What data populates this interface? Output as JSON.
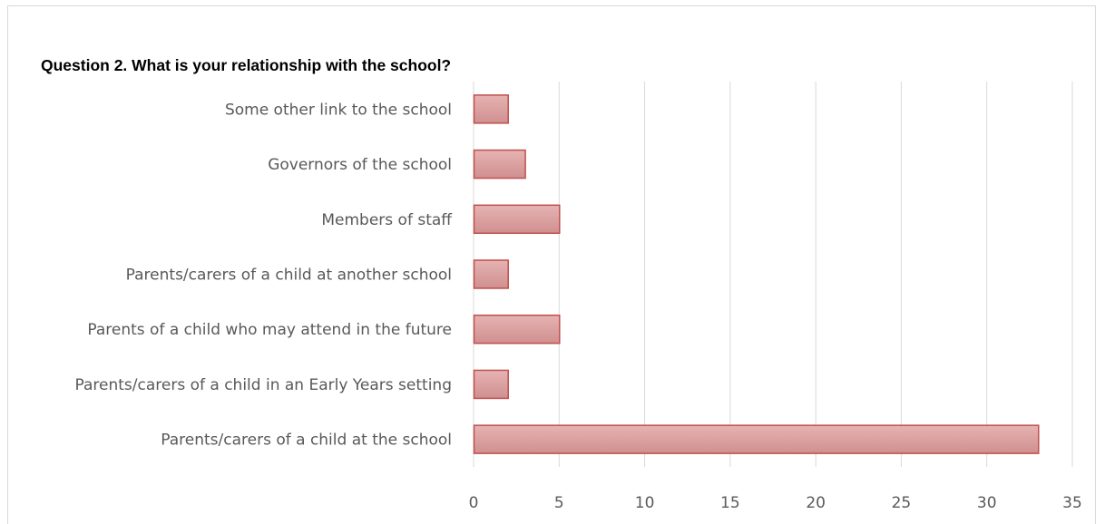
{
  "chart_data": {
    "type": "bar",
    "orientation": "horizontal",
    "title": "Question 2. What is your relationship with the school?",
    "categories": [
      "Some other link to the school",
      "Governors of the school",
      "Members of staff",
      "Parents/carers of a child at another school",
      "Parents of a child who may attend in the future",
      "Parents/carers of a child in an Early Years setting",
      "Parents/carers of a child at the school"
    ],
    "values": [
      2,
      3,
      5,
      2,
      5,
      2,
      33
    ],
    "xlim": [
      0,
      35
    ],
    "xticks": [
      "0",
      "5",
      "10",
      "15",
      "20",
      "25",
      "30",
      "35"
    ],
    "grid": "vertical",
    "legend": "none",
    "colors": {
      "bar_fill_top": "#e6b3b3",
      "bar_fill_bottom": "#d08f8f",
      "bar_border": "#c0504d",
      "grid": "#d9d9d9",
      "label_text": "#595959"
    }
  }
}
